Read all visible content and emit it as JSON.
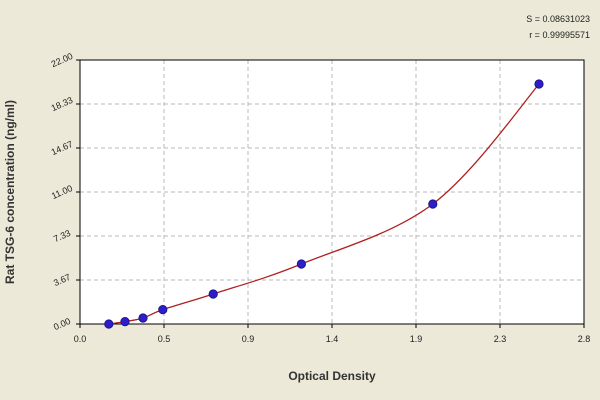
{
  "chart_data": {
    "type": "scatter",
    "xlabel": "Optical Density",
    "ylabel": "Rat TSG-6 concentration (ng/ml)",
    "xlim": [
      0.0,
      2.8
    ],
    "ylim": [
      0.0,
      22.0
    ],
    "x_ticks": [
      "0.0",
      "0.5",
      "0.9",
      "1.4",
      "1.9",
      "2.3",
      "2.8"
    ],
    "y_ticks": [
      "0.00",
      "3.67",
      "7.33",
      "11.00",
      "14.67",
      "18.33",
      "22.00"
    ],
    "grid": true,
    "fit_stats": [
      "S = 0.08631023",
      "r = 0.99995571"
    ],
    "points": [
      {
        "x": 0.16,
        "y": 0.0
      },
      {
        "x": 0.25,
        "y": 0.2
      },
      {
        "x": 0.35,
        "y": 0.5
      },
      {
        "x": 0.46,
        "y": 1.2
      },
      {
        "x": 0.74,
        "y": 2.5
      },
      {
        "x": 1.23,
        "y": 5.0
      },
      {
        "x": 1.96,
        "y": 10.0
      },
      {
        "x": 2.55,
        "y": 20.0
      }
    ],
    "colors": {
      "background": "#ece9d8",
      "plot_area": "#ffffff",
      "grid": "#b8b8b8",
      "curve": "#b02020",
      "marker": "#2c1ec8",
      "axis": "#000000"
    }
  }
}
